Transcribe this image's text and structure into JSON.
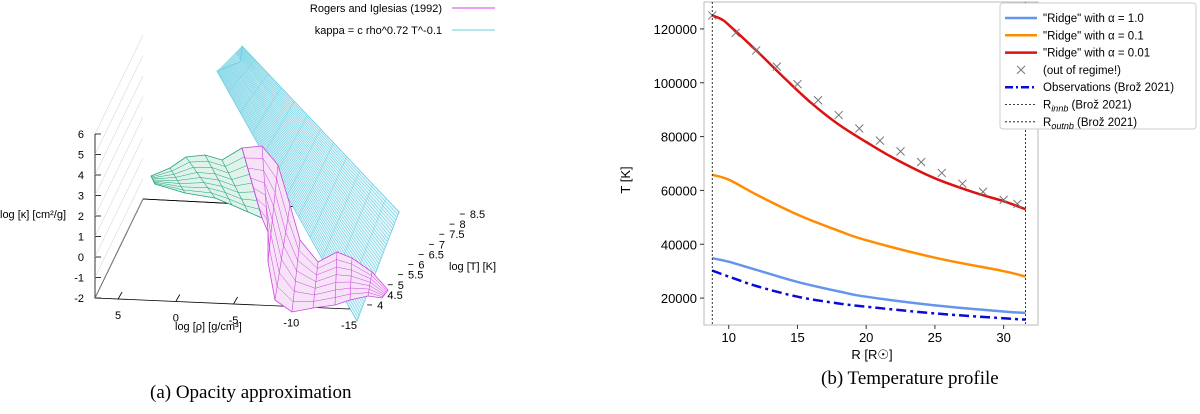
{
  "chart_data": [
    {
      "type": "surface",
      "panel_caption": "(a) Opacity approximation",
      "xlabel": "log [ρ] [g/cm³]",
      "ylabel": "log [T] [K]",
      "zlabel": "log [κ] [cm²/g]",
      "x_ticks": [
        "5",
        "0",
        "-5",
        "-10",
        "-15"
      ],
      "y_ticks": [
        "4",
        "4.5",
        "5",
        "5.5",
        "6",
        "6.5",
        "7",
        "7.5",
        "8",
        "8.5"
      ],
      "z_ticks": [
        "-2",
        "-1",
        "0",
        "1",
        "2",
        "3",
        "4",
        "5",
        "6"
      ],
      "xlim": [
        7,
        -15
      ],
      "ylim": [
        3.8,
        8.6
      ],
      "zlim": [
        -2,
        6
      ],
      "legend_position": "top-right",
      "series": [
        {
          "name": "Rogers and Iglesias (1992)",
          "color": "#cc44dd"
        },
        {
          "name": "kappa = c rho^0.72 T^-0.1",
          "color": "#66cce0"
        }
      ]
    },
    {
      "type": "line",
      "panel_caption": "(b) Temperature profile",
      "xlabel": "R [R☉]",
      "ylabel": "T [K]",
      "xlim": [
        8.2,
        32.5
      ],
      "ylim": [
        10000,
        130000
      ],
      "x_ticks": [
        10,
        15,
        20,
        25,
        30
      ],
      "y_ticks": [
        20000,
        40000,
        60000,
        80000,
        100000,
        120000
      ],
      "legend_position": "top-right",
      "series": [
        {
          "name": "\"Ridge\" with α = 1.0",
          "color": "#6495ed",
          "style": "solid",
          "x": [
            8.8,
            10,
            12,
            15,
            18,
            20,
            25,
            30,
            31.6
          ],
          "y": [
            34800,
            33500,
            30500,
            26000,
            22500,
            20500,
            17300,
            15000,
            14500
          ]
        },
        {
          "name": "\"Ridge\" with α = 0.1",
          "color": "#ff8c00",
          "style": "solid",
          "x": [
            8.8,
            10,
            12,
            15,
            18,
            20,
            25,
            30,
            31.6
          ],
          "y": [
            65800,
            64000,
            58500,
            51000,
            45000,
            41500,
            35000,
            30000,
            28000
          ]
        },
        {
          "name": "\"Ridge\" with α = 0.01",
          "color": "#dd1111",
          "style": "solid",
          "x": [
            8.8,
            9.5,
            10,
            12,
            14,
            16,
            18,
            20,
            22,
            25,
            28,
            30,
            31.6
          ],
          "y": [
            125000,
            123500,
            121500,
            112000,
            102000,
            92500,
            84500,
            78000,
            72000,
            64500,
            59000,
            56000,
            53000
          ]
        },
        {
          "name": "(out of regime!)",
          "color": "#777777",
          "style": "marker-x",
          "x": [
            8.8,
            10.5,
            12,
            13.5,
            15,
            16.5,
            18,
            19.5,
            21,
            22.5,
            24,
            25.5,
            27,
            28.5,
            30,
            31
          ],
          "y": [
            125000,
            118500,
            112000,
            106000,
            99500,
            93500,
            88000,
            83000,
            78500,
            74500,
            70500,
            66500,
            62500,
            59500,
            56500,
            55000
          ]
        },
        {
          "name": "Observations (Brož 2021)",
          "color": "#0a0adc",
          "style": "dashdot",
          "x": [
            8.8,
            10,
            12,
            15,
            18,
            20,
            25,
            30,
            31.6
          ],
          "y": [
            30200,
            28000,
            24500,
            20500,
            18000,
            16800,
            14300,
            12500,
            12000
          ]
        },
        {
          "name": "R_innb (Brož 2021)",
          "color": "#000000",
          "style": "vline-dotted",
          "x_value": 8.8
        },
        {
          "name": "R_outnb (Brož 2021)",
          "color": "#000000",
          "style": "vline-dotted",
          "x_value": 31.6
        }
      ]
    }
  ]
}
